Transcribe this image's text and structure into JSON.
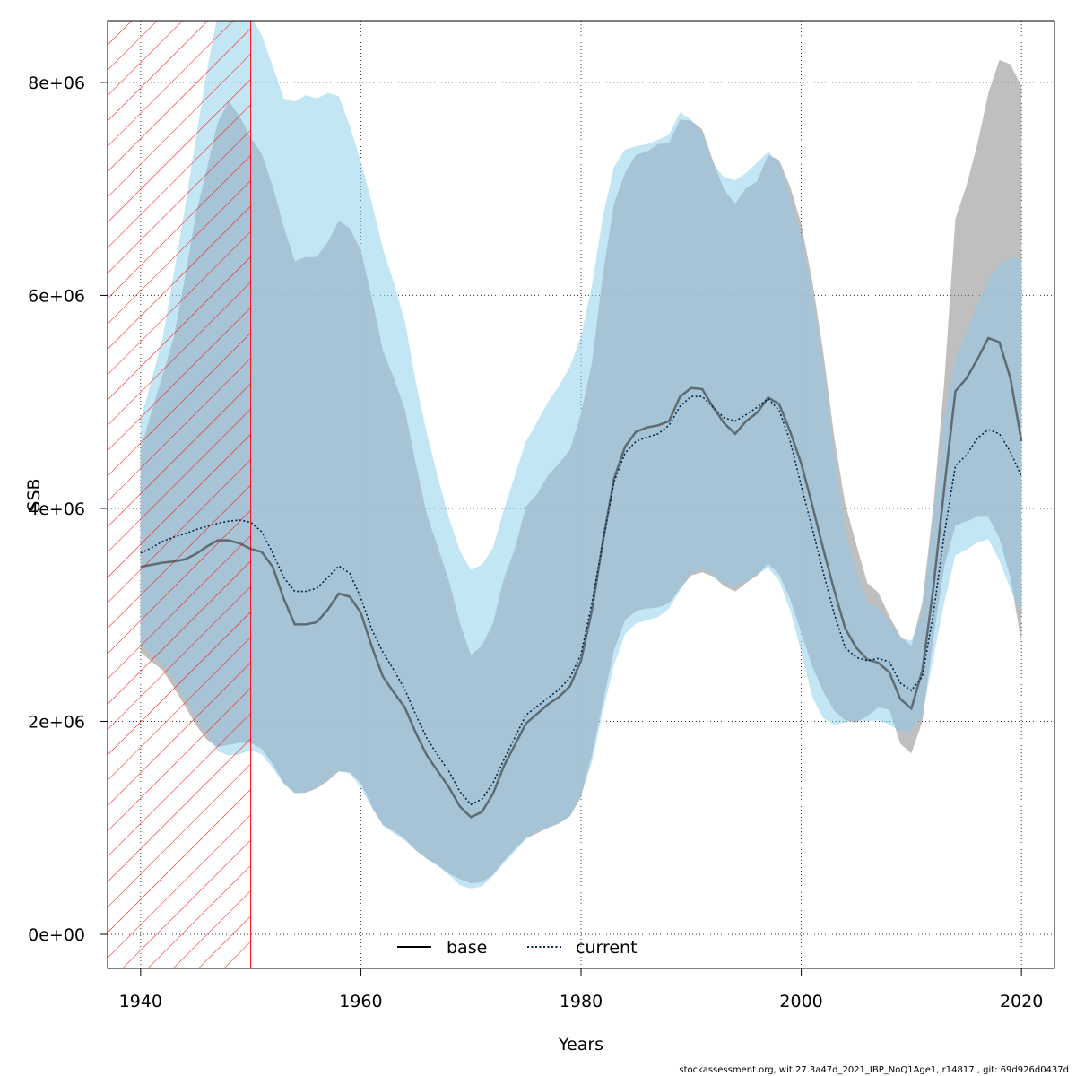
{
  "colors": {
    "base_band": "#7f7f7f",
    "current_band": "#87ceeb",
    "overlap_band": "#a6c3d5",
    "base_line": "#5f6b73",
    "current_line": "#00264d",
    "hatch": "#ff0000",
    "grid": "#333333"
  },
  "footer": "stockassessment.org, wit.27.3a47d_2021_IBP_NoQ1Age1, r14817 , git: 69d926d0437d",
  "chart_data": {
    "type": "area",
    "title": "",
    "xlabel": "Years",
    "ylabel": "SSB",
    "xlim": [
      1937,
      2023
    ],
    "ylim": [
      -320000,
      8580000
    ],
    "x_ticks": [
      1940,
      1960,
      1980,
      2000,
      2020
    ],
    "y_ticks": [
      0,
      2000000,
      4000000,
      6000000,
      8000000
    ],
    "y_tick_labels": [
      "0e+00",
      "2e+06",
      "4e+06",
      "6e+06",
      "8e+06"
    ],
    "grid": true,
    "legend": {
      "position": "bottom-center",
      "items": [
        {
          "label": "base",
          "style": "solid"
        },
        {
          "label": "current",
          "style": "dotted"
        }
      ]
    },
    "hatched_region": {
      "x_from": 1937,
      "x_to": 1950
    },
    "x": [
      1940,
      1941,
      1942,
      1943,
      1944,
      1945,
      1946,
      1947,
      1948,
      1949,
      1950,
      1951,
      1952,
      1953,
      1954,
      1955,
      1956,
      1957,
      1958,
      1959,
      1960,
      1961,
      1962,
      1963,
      1964,
      1965,
      1966,
      1967,
      1968,
      1969,
      1970,
      1971,
      1972,
      1973,
      1974,
      1975,
      1976,
      1977,
      1978,
      1979,
      1980,
      1981,
      1982,
      1983,
      1984,
      1985,
      1986,
      1987,
      1988,
      1989,
      1990,
      1991,
      1992,
      1993,
      1994,
      1995,
      1996,
      1997,
      1998,
      1999,
      2000,
      2001,
      2002,
      2003,
      2004,
      2005,
      2006,
      2007,
      2008,
      2009,
      2010,
      2011,
      2012,
      2013,
      2014,
      2015,
      2016,
      2017,
      2018,
      2019,
      2020
    ],
    "series": [
      {
        "name": "base",
        "values": [
          3450000,
          3470000,
          3490000,
          3500000,
          3520000,
          3570000,
          3640000,
          3700000,
          3700000,
          3670000,
          3620000,
          3590000,
          3450000,
          3150000,
          2910000,
          2910000,
          2930000,
          3050000,
          3200000,
          3170000,
          3020000,
          2700000,
          2420000,
          2270000,
          2130000,
          1890000,
          1680000,
          1530000,
          1380000,
          1200000,
          1100000,
          1150000,
          1320000,
          1580000,
          1780000,
          1980000,
          2070000,
          2160000,
          2230000,
          2330000,
          2570000,
          3050000,
          3700000,
          4280000,
          4580000,
          4720000,
          4760000,
          4780000,
          4820000,
          5050000,
          5130000,
          5120000,
          4950000,
          4800000,
          4700000,
          4820000,
          4900000,
          5040000,
          4980000,
          4720000,
          4420000,
          4030000,
          3620000,
          3230000,
          2870000,
          2690000,
          2580000,
          2550000,
          2460000,
          2210000,
          2120000,
          2480000,
          3250000,
          4200000,
          5100000,
          5220000,
          5400000,
          5600000,
          5560000,
          5220000,
          4630000
        ]
      },
      {
        "name": "current",
        "values": [
          3580000,
          3630000,
          3690000,
          3730000,
          3760000,
          3800000,
          3830000,
          3860000,
          3880000,
          3890000,
          3870000,
          3780000,
          3580000,
          3350000,
          3220000,
          3220000,
          3250000,
          3350000,
          3460000,
          3390000,
          3160000,
          2860000,
          2650000,
          2480000,
          2300000,
          2060000,
          1840000,
          1680000,
          1530000,
          1340000,
          1220000,
          1270000,
          1420000,
          1640000,
          1850000,
          2060000,
          2140000,
          2220000,
          2300000,
          2410000,
          2630000,
          3120000,
          3700000,
          4250000,
          4520000,
          4630000,
          4670000,
          4700000,
          4780000,
          4960000,
          5050000,
          5050000,
          4950000,
          4850000,
          4820000,
          4880000,
          4950000,
          5030000,
          4920000,
          4630000,
          4210000,
          3810000,
          3400000,
          3010000,
          2690000,
          2600000,
          2570000,
          2590000,
          2560000,
          2360000,
          2290000,
          2420000,
          3010000,
          3760000,
          4400000,
          4500000,
          4660000,
          4740000,
          4700000,
          4530000,
          4300000
        ]
      },
      {
        "name": "base band lower",
        "values": [
          2650000,
          2560000,
          2480000,
          2320000,
          2150000,
          1970000,
          1830000,
          1760000,
          1780000,
          1800000,
          1800000,
          1740000,
          1600000,
          1420000,
          1330000,
          1330000,
          1370000,
          1440000,
          1530000,
          1520000,
          1420000,
          1200000,
          1030000,
          970000,
          900000,
          790000,
          710000,
          650000,
          570000,
          520000,
          480000,
          490000,
          560000,
          690000,
          800000,
          900000,
          950000,
          1000000,
          1040000,
          1110000,
          1290000,
          1690000,
          2190000,
          2670000,
          2950000,
          3040000,
          3060000,
          3070000,
          3110000,
          3250000,
          3370000,
          3400000,
          3360000,
          3270000,
          3220000,
          3300000,
          3370000,
          3480000,
          3380000,
          3150000,
          2830000,
          2520000,
          2280000,
          2100000,
          2010000,
          1990000,
          2050000,
          2130000,
          2110000,
          1790000,
          1700000,
          2000000,
          2780000,
          3460000,
          3840000,
          3880000,
          3920000,
          3920000,
          3720000,
          3350000,
          2730000
        ]
      },
      {
        "name": "base band upper",
        "values": [
          4550000,
          4910000,
          5250000,
          5600000,
          6150000,
          6750000,
          7180000,
          7620000,
          7820000,
          7680000,
          7480000,
          7330000,
          7020000,
          6640000,
          6320000,
          6360000,
          6360000,
          6500000,
          6700000,
          6630000,
          6420000,
          5980000,
          5480000,
          5220000,
          4930000,
          4410000,
          3940000,
          3630000,
          3320000,
          2920000,
          2620000,
          2710000,
          2920000,
          3340000,
          3620000,
          4020000,
          4130000,
          4310000,
          4420000,
          4550000,
          4890000,
          5370000,
          6210000,
          6860000,
          7150000,
          7320000,
          7350000,
          7420000,
          7430000,
          7650000,
          7640000,
          7560000,
          7260000,
          6990000,
          6860000,
          7010000,
          7070000,
          7320000,
          7270000,
          7020000,
          6670000,
          6140000,
          5470000,
          4670000,
          4040000,
          3660000,
          3300000,
          3210000,
          2990000,
          2800000,
          2710000,
          3120000,
          4020000,
          5200000,
          6720000,
          7030000,
          7420000,
          7900000,
          8210000,
          8170000,
          7960000
        ]
      },
      {
        "name": "current band lower",
        "values": [
          2720000,
          2630000,
          2530000,
          2400000,
          2220000,
          2050000,
          1880000,
          1720000,
          1680000,
          1690000,
          1730000,
          1690000,
          1560000,
          1410000,
          1320000,
          1330000,
          1380000,
          1460000,
          1540000,
          1510000,
          1380000,
          1190000,
          1020000,
          950000,
          880000,
          790000,
          710000,
          640000,
          560000,
          460000,
          430000,
          450000,
          550000,
          670000,
          780000,
          900000,
          970000,
          1000000,
          1050000,
          1110000,
          1310000,
          1620000,
          2100000,
          2530000,
          2820000,
          2920000,
          2950000,
          2980000,
          3060000,
          3230000,
          3390000,
          3440000,
          3380000,
          3290000,
          3270000,
          3320000,
          3380000,
          3440000,
          3320000,
          3040000,
          2650000,
          2230000,
          2030000,
          1970000,
          1990000,
          2010000,
          2000000,
          2010000,
          1970000,
          1910000,
          1900000,
          2060000,
          2590000,
          3120000,
          3560000,
          3610000,
          3680000,
          3710000,
          3510000,
          3240000,
          3020000
        ]
      },
      {
        "name": "current band upper",
        "values": [
          4830000,
          5210000,
          5600000,
          6200000,
          6810000,
          7460000,
          8100000,
          8640000,
          8790000,
          8780000,
          8630000,
          8440000,
          8150000,
          7850000,
          7820000,
          7880000,
          7850000,
          7900000,
          7870000,
          7590000,
          7260000,
          6870000,
          6440000,
          6120000,
          5760000,
          5180000,
          4700000,
          4290000,
          3910000,
          3600000,
          3420000,
          3470000,
          3630000,
          3990000,
          4310000,
          4630000,
          4810000,
          5000000,
          5150000,
          5330000,
          5620000,
          6100000,
          6750000,
          7210000,
          7370000,
          7400000,
          7420000,
          7460000,
          7510000,
          7720000,
          7650000,
          7520000,
          7230000,
          7110000,
          7080000,
          7150000,
          7250000,
          7350000,
          7240000,
          6920000,
          6550000,
          6020000,
          5330000,
          4510000,
          3780000,
          3400000,
          3120000,
          3060000,
          2940000,
          2780000,
          2760000,
          3030000,
          3900000,
          4860000,
          5400000,
          5660000,
          5900000,
          6150000,
          6280000,
          6350000,
          6340000
        ]
      }
    ]
  }
}
